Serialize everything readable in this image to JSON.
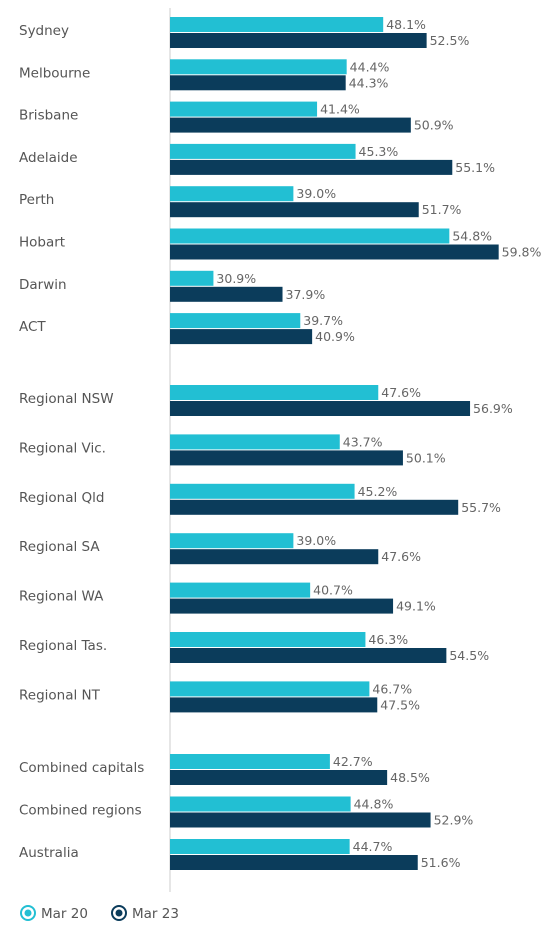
{
  "chart_data": {
    "type": "hbar",
    "categories": [
      "Sydney",
      "Melbourne",
      "Brisbane",
      "Adelaide",
      "Perth",
      "Hobart",
      "Darwin",
      "ACT",
      "Regional NSW",
      "Regional Vic.",
      "Regional Qld",
      "Regional SA",
      "Regional WA",
      "Regional Tas.",
      "Regional NT",
      "Combined capitals",
      "Combined regions",
      "Australia"
    ],
    "series": [
      {
        "name": "Mar 20",
        "color": "#22bfd3",
        "values": [
          48.1,
          44.4,
          41.4,
          45.3,
          39.0,
          54.8,
          30.9,
          39.7,
          47.6,
          43.7,
          45.2,
          39.0,
          40.7,
          46.3,
          46.7,
          42.7,
          44.8,
          44.7
        ],
        "value_labels": [
          "48.1%",
          "44.4%",
          "41.4%",
          "45.3%",
          "39.0%",
          "54.8%",
          "30.9%",
          "39.7%",
          "47.6%",
          "43.7%",
          "45.2%",
          "39.0%",
          "40.7%",
          "46.3%",
          "46.7%",
          "42.7%",
          "44.8%",
          "44.7%"
        ]
      },
      {
        "name": "Mar 23",
        "color": "#0b3c5b",
        "values": [
          52.5,
          44.3,
          50.9,
          55.1,
          51.7,
          59.8,
          37.9,
          40.9,
          56.9,
          50.1,
          55.7,
          47.6,
          49.1,
          54.5,
          47.5,
          48.5,
          52.9,
          51.6
        ],
        "value_labels": [
          "52.5%",
          "44.3%",
          "50.9%",
          "55.1%",
          "51.7%",
          "59.8%",
          "37.9%",
          "40.9%",
          "56.9%",
          "50.1%",
          "55.7%",
          "47.6%",
          "49.1%",
          "54.5%",
          "47.5%",
          "48.5%",
          "52.9%",
          "51.6%"
        ]
      }
    ],
    "xlim": [
      26.5,
      65
    ],
    "legend": "bottom-left"
  }
}
